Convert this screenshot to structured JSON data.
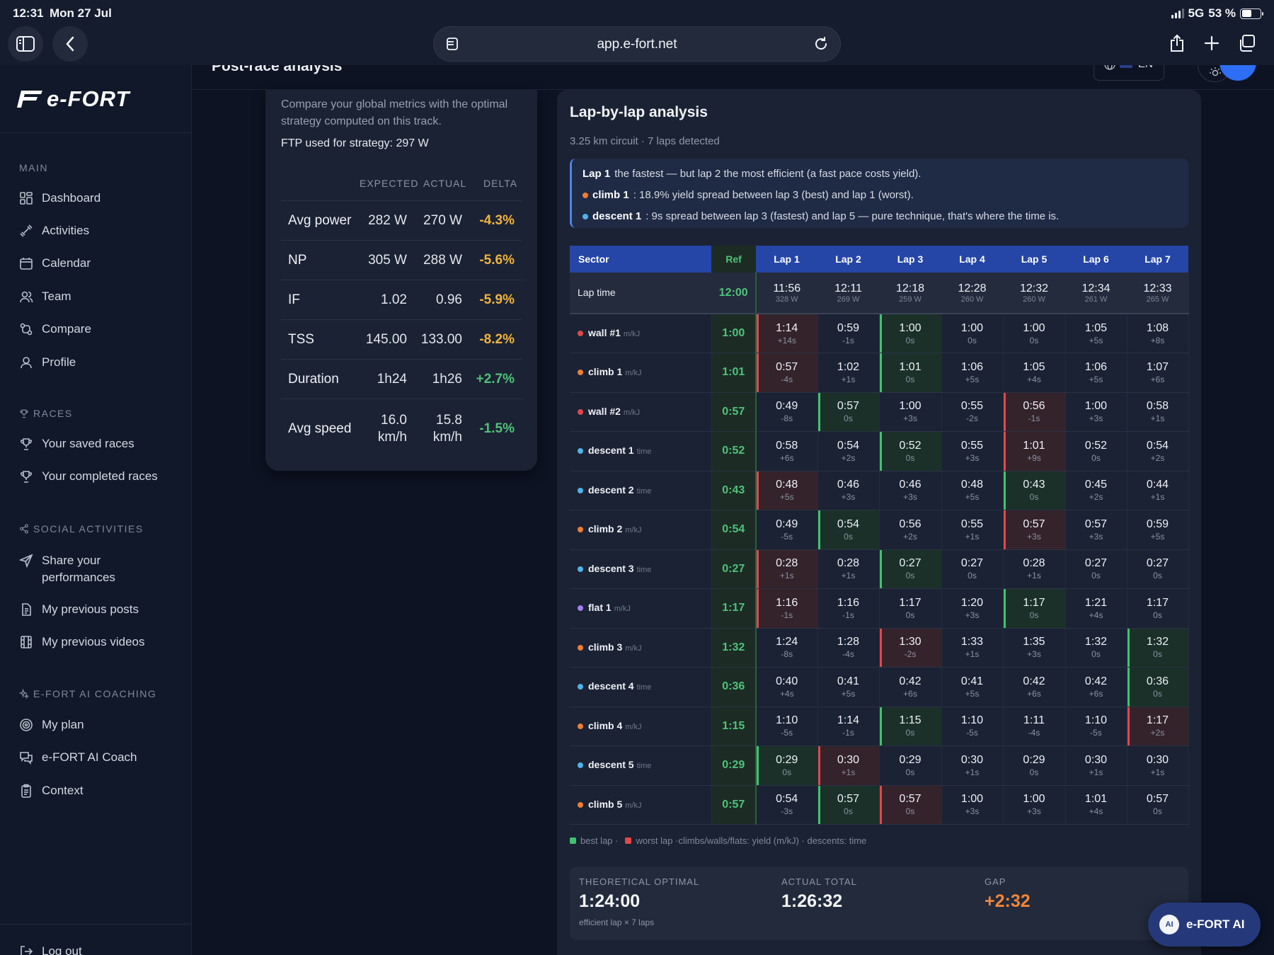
{
  "status": {
    "time": "12:31",
    "date": "Mon 27 Jul",
    "network": "5G",
    "battery": "53 %",
    "battery_level": 0.53
  },
  "browser": {
    "url": "app.e-fort.net"
  },
  "colors": {
    "best": "#3ec46d",
    "worst": "#e2474b",
    "climb": "#ef7d32",
    "wall": "#e2474b",
    "descent": "#4fb3ea",
    "flat": "#a47cf0",
    "accent": "#2d6ef5"
  },
  "sidebar": {
    "logo_text": "e-FORT",
    "sections": [
      {
        "title": "MAIN",
        "icon": "",
        "items": [
          {
            "label": "Dashboard",
            "icon": "grid-icon"
          },
          {
            "label": "Activities",
            "icon": "dumbbell-icon"
          },
          {
            "label": "Calendar",
            "icon": "calendar-icon"
          },
          {
            "label": "Team",
            "icon": "users-icon"
          },
          {
            "label": "Compare",
            "icon": "compare-icon"
          },
          {
            "label": "Profile",
            "icon": "user-icon"
          }
        ]
      },
      {
        "title": "RACES",
        "icon": "trophy-icon",
        "items": [
          {
            "label": "Your saved races",
            "icon": "trophy-icon"
          },
          {
            "label": "Your completed races",
            "icon": "trophy-icon"
          }
        ]
      },
      {
        "title": "SOCIAL ACTIVITIES",
        "icon": "share-icon",
        "items": [
          {
            "label": "Share your performances",
            "icon": "send-icon"
          },
          {
            "label": "My previous posts",
            "icon": "document-icon"
          },
          {
            "label": "My previous videos",
            "icon": "film-icon"
          }
        ]
      },
      {
        "title": "E-FORT AI COACHING",
        "icon": "sparkle-icon",
        "items": [
          {
            "label": "My plan",
            "icon": "target-icon"
          },
          {
            "label": "e-FORT AI Coach",
            "icon": "chat-icon"
          },
          {
            "label": "Context",
            "icon": "clipboard-icon"
          }
        ]
      }
    ],
    "logout_label": "Log out"
  },
  "header": {
    "title": "Post-race analysis",
    "language": "EN"
  },
  "strategy": {
    "description": "Compare your global metrics with the optimal strategy computed on this track.",
    "ftp_text": "FTP used for strategy: 297 W",
    "columns": [
      "EXPECTED",
      "ACTUAL",
      "DELTA"
    ],
    "rows": [
      {
        "label": "Avg power",
        "expected": "282 W",
        "actual": "270 W",
        "delta": "-4.3%",
        "tone": "warn"
      },
      {
        "label": "NP",
        "expected": "305 W",
        "actual": "288 W",
        "delta": "-5.6%",
        "tone": "warn"
      },
      {
        "label": "IF",
        "expected": "1.02",
        "actual": "0.96",
        "delta": "-5.9%",
        "tone": "warn"
      },
      {
        "label": "TSS",
        "expected": "145.00",
        "actual": "133.00",
        "delta": "-8.2%",
        "tone": "warn"
      },
      {
        "label": "Duration",
        "expected": "1h24",
        "actual": "1h26",
        "delta": "+2.7%",
        "tone": "good"
      },
      {
        "label": "Avg speed",
        "expected": "16.0 km/h",
        "actual": "15.8 km/h",
        "delta": "-1.5%",
        "tone": "good"
      }
    ]
  },
  "laps": {
    "title": "Lap-by-lap analysis",
    "subtitle": "3.25 km circuit · 7 laps detected",
    "insights": [
      {
        "dot": "",
        "bold": "Lap 1",
        "text": "the fastest — but lap 2 the most efficient (a fast pace costs yield)."
      },
      {
        "dot": "climb",
        "bold": "climb 1",
        "text": ": 18.9% yield spread between lap 3 (best) and lap 1 (worst)."
      },
      {
        "dot": "descent",
        "bold": "descent 1",
        "text": ": 9s spread between lap 3 (fastest) and lap 5 — pure technique, that's where the time is."
      }
    ],
    "headers": [
      "Sector",
      "Ref",
      "Lap 1",
      "Lap 2",
      "Lap 3",
      "Lap 4",
      "Lap 5",
      "Lap 6",
      "Lap 7"
    ],
    "lap_time": {
      "label": "Lap time",
      "ref": "12:00",
      "laps": [
        {
          "t": "11:56",
          "w": "328 W"
        },
        {
          "t": "12:11",
          "w": "269 W"
        },
        {
          "t": "12:18",
          "w": "259 W"
        },
        {
          "t": "12:28",
          "w": "260 W"
        },
        {
          "t": "12:32",
          "w": "260 W"
        },
        {
          "t": "12:34",
          "w": "261 W"
        },
        {
          "t": "12:33",
          "w": "265 W"
        }
      ]
    },
    "rows": [
      {
        "name": "wall #1",
        "type": "wall",
        "unit": "m/kJ",
        "ref": "1:00",
        "best": 2,
        "worst": 0,
        "cells": [
          [
            "1:14",
            "+14s"
          ],
          [
            "0:59",
            "-1s"
          ],
          [
            "1:00",
            "0s"
          ],
          [
            "1:00",
            "0s"
          ],
          [
            "1:00",
            "0s"
          ],
          [
            "1:05",
            "+5s"
          ],
          [
            "1:08",
            "+8s"
          ]
        ]
      },
      {
        "name": "climb 1",
        "type": "climb",
        "unit": "m/kJ",
        "ref": "1:01",
        "best": 2,
        "worst": 0,
        "cells": [
          [
            "0:57",
            "-4s"
          ],
          [
            "1:02",
            "+1s"
          ],
          [
            "1:01",
            "0s"
          ],
          [
            "1:06",
            "+5s"
          ],
          [
            "1:05",
            "+4s"
          ],
          [
            "1:06",
            "+5s"
          ],
          [
            "1:07",
            "+6s"
          ]
        ]
      },
      {
        "name": "wall #2",
        "type": "wall",
        "unit": "m/kJ",
        "ref": "0:57",
        "best": 1,
        "worst": 4,
        "cells": [
          [
            "0:49",
            "-8s"
          ],
          [
            "0:57",
            "0s"
          ],
          [
            "1:00",
            "+3s"
          ],
          [
            "0:55",
            "-2s"
          ],
          [
            "0:56",
            "-1s"
          ],
          [
            "1:00",
            "+3s"
          ],
          [
            "0:58",
            "+1s"
          ]
        ]
      },
      {
        "name": "descent 1",
        "type": "descent",
        "unit": "time",
        "ref": "0:52",
        "best": 2,
        "worst": 4,
        "cells": [
          [
            "0:58",
            "+6s"
          ],
          [
            "0:54",
            "+2s"
          ],
          [
            "0:52",
            "0s"
          ],
          [
            "0:55",
            "+3s"
          ],
          [
            "1:01",
            "+9s"
          ],
          [
            "0:52",
            "0s"
          ],
          [
            "0:54",
            "+2s"
          ]
        ]
      },
      {
        "name": "descent 2",
        "type": "descent",
        "unit": "time",
        "ref": "0:43",
        "best": 4,
        "worst": 0,
        "cells": [
          [
            "0:48",
            "+5s"
          ],
          [
            "0:46",
            "+3s"
          ],
          [
            "0:46",
            "+3s"
          ],
          [
            "0:48",
            "+5s"
          ],
          [
            "0:43",
            "0s"
          ],
          [
            "0:45",
            "+2s"
          ],
          [
            "0:44",
            "+1s"
          ]
        ]
      },
      {
        "name": "climb 2",
        "type": "climb",
        "unit": "m/kJ",
        "ref": "0:54",
        "best": 1,
        "worst": 4,
        "cells": [
          [
            "0:49",
            "-5s"
          ],
          [
            "0:54",
            "0s"
          ],
          [
            "0:56",
            "+2s"
          ],
          [
            "0:55",
            "+1s"
          ],
          [
            "0:57",
            "+3s"
          ],
          [
            "0:57",
            "+3s"
          ],
          [
            "0:59",
            "+5s"
          ]
        ]
      },
      {
        "name": "descent 3",
        "type": "descent",
        "unit": "time",
        "ref": "0:27",
        "best": 2,
        "worst": 0,
        "cells": [
          [
            "0:28",
            "+1s"
          ],
          [
            "0:28",
            "+1s"
          ],
          [
            "0:27",
            "0s"
          ],
          [
            "0:27",
            "0s"
          ],
          [
            "0:28",
            "+1s"
          ],
          [
            "0:27",
            "0s"
          ],
          [
            "0:27",
            "0s"
          ]
        ]
      },
      {
        "name": "flat 1",
        "type": "flat",
        "unit": "m/kJ",
        "ref": "1:17",
        "best": 4,
        "worst": 0,
        "cells": [
          [
            "1:16",
            "-1s"
          ],
          [
            "1:16",
            "-1s"
          ],
          [
            "1:17",
            "0s"
          ],
          [
            "1:20",
            "+3s"
          ],
          [
            "1:17",
            "0s"
          ],
          [
            "1:21",
            "+4s"
          ],
          [
            "1:17",
            "0s"
          ]
        ]
      },
      {
        "name": "climb 3",
        "type": "climb",
        "unit": "m/kJ",
        "ref": "1:32",
        "best": 6,
        "worst": 2,
        "cells": [
          [
            "1:24",
            "-8s"
          ],
          [
            "1:28",
            "-4s"
          ],
          [
            "1:30",
            "-2s"
          ],
          [
            "1:33",
            "+1s"
          ],
          [
            "1:35",
            "+3s"
          ],
          [
            "1:32",
            "0s"
          ],
          [
            "1:32",
            "0s"
          ]
        ]
      },
      {
        "name": "descent 4",
        "type": "descent",
        "unit": "time",
        "ref": "0:36",
        "best": 6,
        "worst": -1,
        "cells": [
          [
            "0:40",
            "+4s"
          ],
          [
            "0:41",
            "+5s"
          ],
          [
            "0:42",
            "+6s"
          ],
          [
            "0:41",
            "+5s"
          ],
          [
            "0:42",
            "+6s"
          ],
          [
            "0:42",
            "+6s"
          ],
          [
            "0:36",
            "0s"
          ]
        ]
      },
      {
        "name": "climb 4",
        "type": "climb",
        "unit": "m/kJ",
        "ref": "1:15",
        "best": 2,
        "worst": 6,
        "cells": [
          [
            "1:10",
            "-5s"
          ],
          [
            "1:14",
            "-1s"
          ],
          [
            "1:15",
            "0s"
          ],
          [
            "1:10",
            "-5s"
          ],
          [
            "1:11",
            "-4s"
          ],
          [
            "1:10",
            "-5s"
          ],
          [
            "1:17",
            "+2s"
          ]
        ]
      },
      {
        "name": "descent 5",
        "type": "descent",
        "unit": "time",
        "ref": "0:29",
        "best": 0,
        "worst": 1,
        "cells": [
          [
            "0:29",
            "0s"
          ],
          [
            "0:30",
            "+1s"
          ],
          [
            "0:29",
            "0s"
          ],
          [
            "0:30",
            "+1s"
          ],
          [
            "0:29",
            "0s"
          ],
          [
            "0:30",
            "+1s"
          ],
          [
            "0:30",
            "+1s"
          ]
        ]
      },
      {
        "name": "climb 5",
        "type": "climb",
        "unit": "m/kJ",
        "ref": "0:57",
        "best": 1,
        "worst": 2,
        "cells": [
          [
            "0:54",
            "-3s"
          ],
          [
            "0:57",
            "0s"
          ],
          [
            "0:57",
            "0s"
          ],
          [
            "1:00",
            "+3s"
          ],
          [
            "1:00",
            "+3s"
          ],
          [
            "1:01",
            "+4s"
          ],
          [
            "0:57",
            "0s"
          ]
        ]
      }
    ],
    "legend": {
      "best": "best lap ·",
      "worst": "worst lap ·climbs/walls/flats: yield (m/kJ) · descents: time"
    },
    "totals": {
      "optimal_label": "THEORETICAL OPTIMAL",
      "optimal_value": "1:24:00",
      "optimal_note": "efficient lap × 7 laps",
      "actual_label": "ACTUAL TOTAL",
      "actual_value": "1:26:32",
      "gap_label": "GAP",
      "gap_value": "+2:32"
    }
  },
  "ai_button": {
    "label": "e-FORT AI",
    "logo": "AI"
  }
}
